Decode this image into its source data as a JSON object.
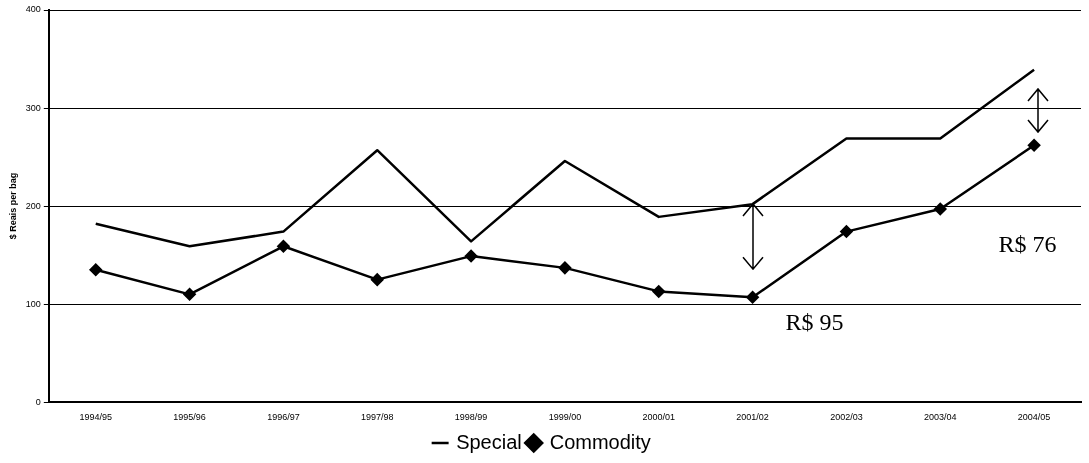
{
  "chart_data": {
    "type": "line",
    "ylabel": "$ Reais per bag",
    "categories": [
      "1994/95",
      "1995/96",
      "1996/97",
      "1997/98",
      "1998/99",
      "1999/00",
      "2000/01",
      "2001/02",
      "2002/03",
      "2003/04",
      "2004/05"
    ],
    "series": [
      {
        "name": "Special",
        "color": "#000000",
        "marker": "none",
        "values": [
          182,
          159,
          174,
          257,
          164,
          246,
          189,
          202,
          269,
          269,
          339
        ]
      },
      {
        "name": "Commodity",
        "color": "#000000",
        "marker": "diamond",
        "values": [
          135,
          110,
          159,
          125,
          149,
          137,
          113,
          107,
          174,
          197,
          262
        ]
      }
    ],
    "ylim": [
      0,
      400
    ],
    "yticks": [
      0,
      100,
      200,
      300,
      400
    ],
    "grid": "y",
    "legend": "bottom",
    "line_style": "solid",
    "annotations": [
      "R$ 95",
      "R$ 76"
    ]
  }
}
